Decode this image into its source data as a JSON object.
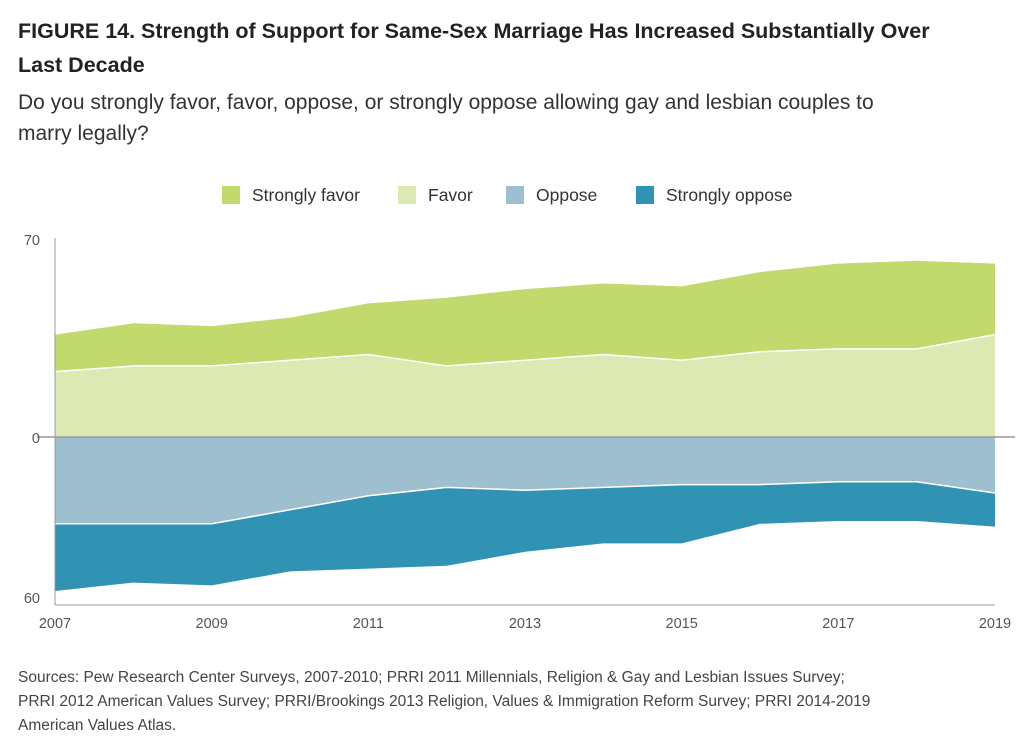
{
  "figure": {
    "title_line1": "FIGURE 14.  Strength of Support for Same-Sex Marriage Has Increased Substantially Over",
    "title_line2": "Last Decade",
    "subtitle_line1": "Do you strongly favor, favor, oppose, or strongly oppose allowing gay and lesbian couples to",
    "subtitle_line2": "marry legally?",
    "sources_line1": "Sources: Pew Research Center Surveys, 2007-2010; PRRI 2011 Millennials, Religion & Gay and Lesbian Issues Survey;",
    "sources_line2": "PRRI 2012 American Values Survey; PRRI/Brookings 2013 Religion, Values & Immigration Reform Survey; PRRI 2014-2019",
    "sources_line3": "American Values Atlas."
  },
  "legend": [
    {
      "label": "Strongly favor",
      "color": "#c2d96d"
    },
    {
      "label": "Favor",
      "color": "#dde9b3"
    },
    {
      "label": "Oppose",
      "color": "#9ebfcf"
    },
    {
      "label": "Strongly oppose",
      "color": "#3093b3"
    }
  ],
  "chart_data": {
    "type": "area",
    "stacked": true,
    "diverging": true,
    "x": [
      2007,
      2008,
      2009,
      2010,
      2011,
      2012,
      2013,
      2014,
      2015,
      2016,
      2017,
      2018,
      2019
    ],
    "x_tick_labels": [
      "2007",
      "2009",
      "2011",
      "2013",
      "2015",
      "2017",
      "2019"
    ],
    "y_tick_labels": [
      "70",
      "0",
      "60"
    ],
    "ylim": [
      -60,
      70
    ],
    "series": [
      {
        "name": "Favor",
        "direction": "up",
        "color": "#dde9b3",
        "values": [
          23,
          25,
          25,
          27,
          29,
          25,
          27,
          29,
          27,
          30,
          31,
          31,
          36
        ]
      },
      {
        "name": "Strongly favor",
        "direction": "up",
        "color": "#c2d96d",
        "values": [
          13,
          15,
          14,
          15,
          18,
          24,
          25,
          25,
          26,
          28,
          30,
          31,
          25
        ]
      },
      {
        "name": "Oppose",
        "direction": "down",
        "color": "#9ebfcf",
        "values": [
          31,
          31,
          31,
          26,
          21,
          18,
          19,
          18,
          17,
          17,
          16,
          16,
          20
        ]
      },
      {
        "name": "Strongly oppose",
        "direction": "down",
        "color": "#3093b3",
        "values": [
          24,
          21,
          22,
          22,
          26,
          28,
          22,
          20,
          21,
          14,
          14,
          14,
          12
        ]
      }
    ],
    "colors": {
      "axis": "#999999",
      "zero_line": "#999999",
      "separator": "#ffffff"
    }
  }
}
